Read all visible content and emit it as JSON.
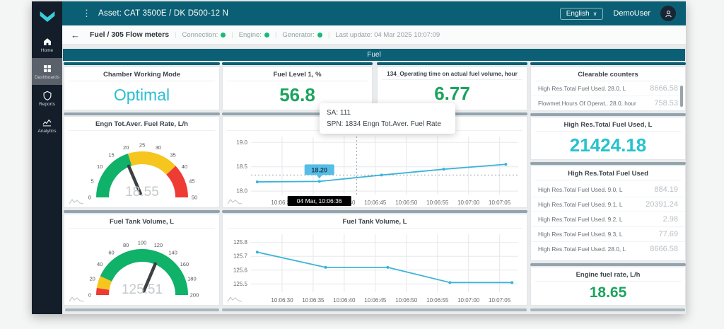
{
  "app": {
    "asset_title": "Asset: CAT 3500E / DK D500-12 N",
    "language": "English",
    "user": "DemoUser"
  },
  "icons": {
    "back": "←",
    "kebab": "⋮",
    "caret": "∨"
  },
  "sidebar": {
    "items": [
      {
        "label": "Home"
      },
      {
        "label": "Dashboards"
      },
      {
        "label": "Reports"
      },
      {
        "label": "Analytics"
      }
    ]
  },
  "subheader": {
    "breadcrumb": "Fuel / 305 Flow meters",
    "statuses": [
      {
        "label": "Connection:"
      },
      {
        "label": "Engine:"
      },
      {
        "label": "Generator:"
      }
    ],
    "last_update": "Last update: 04 Mar 2025 10:07:09"
  },
  "group": {
    "title": "Fuel"
  },
  "cards": {
    "chamber": {
      "title": "Chamber Working Mode",
      "value": "Optimal"
    },
    "fuel_level": {
      "title": "Fuel Level 1, %",
      "value": "56.8"
    },
    "operating_time": {
      "title": "134_Operating time on actual fuel volume, hour",
      "value": "6.77"
    },
    "clearable": {
      "title": "Clearable counters",
      "rows": [
        {
          "label": "High Res.Total Fuel Used. 28.0, L",
          "value": "8666.58"
        },
        {
          "label": "Flowmet.Hours Of Operat.. 28.0, hour",
          "value": "758.53"
        }
      ]
    },
    "high_res_total": {
      "title": "High Res.Total Fuel Used, L",
      "value": "21424.18"
    },
    "high_res_list": {
      "title": "High Res.Total Fuel Used",
      "rows": [
        {
          "label": "High Res.Total Fuel Used. 9.0, L",
          "value": "884.19"
        },
        {
          "label": "High Res.Total Fuel Used. 9.1, L",
          "value": "20391.24"
        },
        {
          "label": "High Res.Total Fuel Used. 9.2, L",
          "value": "2.98"
        },
        {
          "label": "High Res.Total Fuel Used. 9.3, L",
          "value": "77.69"
        },
        {
          "label": "High Res.Total Fuel Used. 28.0, L",
          "value": "8666.58"
        }
      ]
    },
    "engine_rate": {
      "title": "Engine fuel rate, L/h",
      "value": "18.65"
    }
  },
  "tooltip": {
    "line1": "SA: 111",
    "line2": "SPN: 1834 Engn Tot.Aver. Fuel Rate"
  },
  "colors": {
    "topbar": "#0b5f74",
    "accent_cyan": "#29bfd2",
    "value_green": "#1ca35e",
    "line": "#3ab4d8",
    "gauge_green": "#10b169",
    "gauge_yellow": "#f6c51e",
    "gauge_red": "#ee3b33",
    "status_green": "#17b978"
  },
  "chart_data": [
    {
      "type": "gauge",
      "title": "Engn Tot.Aver. Fuel Rate, L/h",
      "min": 0,
      "max": 50,
      "tick_step": 5,
      "value": 18.55,
      "value_label": "18.55",
      "zones": [
        {
          "to": 20,
          "color": "#10b169"
        },
        {
          "to": 38,
          "color": "#f6c51e"
        },
        {
          "to": 50,
          "color": "#ee3b33"
        }
      ]
    },
    {
      "type": "line",
      "title": "Engn Tot.Aver. Fuel Rate, L/h",
      "points": [
        [
          "10:06:26",
          18.19
        ],
        [
          "10:06:36",
          18.2
        ],
        [
          "10:06:46",
          18.33
        ],
        [
          "10:06:56",
          18.45
        ],
        [
          "10:07:06",
          18.55
        ]
      ],
      "xticks": [
        "10:06:30",
        "10:06:35",
        "10:06:40",
        "10:06:45",
        "10:06:50",
        "10:06:55",
        "10:07:00",
        "10:07:05"
      ],
      "xlim": [
        "10:06:25",
        "10:07:08"
      ],
      "yticks": [
        "18.0",
        "18.5",
        "19.0"
      ],
      "ylim": [
        17.93,
        19.12
      ],
      "selected": {
        "x": "10:06:36",
        "y": 18.2,
        "label": "18.20",
        "xlabel": "04 Mar, 10:06:36",
        "crosshair_x": "10:06:42",
        "crosshair_y": 18.33
      }
    },
    {
      "type": "gauge",
      "title": "Fuel Tank Volume, L",
      "min": 0,
      "max": 200,
      "tick_step": 20,
      "value": 125.51,
      "value_label": "125.51",
      "zones": [
        {
          "to": 10,
          "color": "#ee3b33"
        },
        {
          "to": 27,
          "color": "#f6c51e"
        },
        {
          "to": 200,
          "color": "#10b169"
        }
      ]
    },
    {
      "type": "line",
      "title": "Fuel Tank Volume, L",
      "points": [
        [
          "10:06:26",
          125.73
        ],
        [
          "10:06:37",
          125.62
        ],
        [
          "10:06:47",
          125.62
        ],
        [
          "10:06:57",
          125.51
        ],
        [
          "10:07:07",
          125.51
        ]
      ],
      "xticks": [
        "10:06:30",
        "10:06:35",
        "10:06:40",
        "10:06:45",
        "10:06:50",
        "10:06:55",
        "10:07:00",
        "10:07:05"
      ],
      "xlim": [
        "10:06:25",
        "10:07:08"
      ],
      "yticks": [
        "125.5",
        "125.6",
        "125.7",
        "125.8"
      ],
      "ylim": [
        125.44,
        125.86
      ]
    }
  ]
}
